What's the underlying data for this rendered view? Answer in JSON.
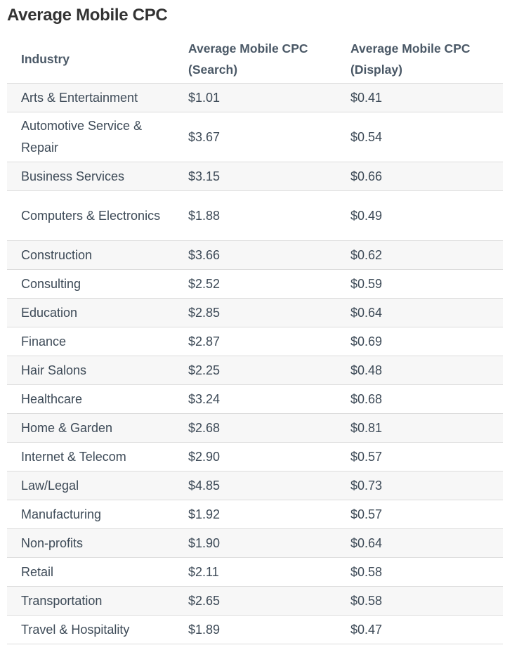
{
  "title": "Average Mobile CPC",
  "table": {
    "headers": [
      "Industry",
      "Average Mobile CPC (Search)",
      "Average Mobile CPC (Display)"
    ],
    "rows": [
      [
        "Arts & Entertainment",
        "$1.01",
        "$0.41"
      ],
      [
        "Automotive Service & Repair",
        "$3.67",
        "$0.54"
      ],
      [
        "Business Services",
        "$3.15",
        "$0.66"
      ],
      [
        "Computers & Electronics",
        "$1.88",
        "$0.49"
      ],
      [
        "Construction",
        "$3.66",
        "$0.62"
      ],
      [
        "Consulting",
        "$2.52",
        "$0.59"
      ],
      [
        "Education",
        "$2.85",
        "$0.64"
      ],
      [
        "Finance",
        "$2.87",
        "$0.69"
      ],
      [
        "Hair Salons",
        "$2.25",
        "$0.48"
      ],
      [
        "Healthcare",
        "$3.24",
        "$0.68"
      ],
      [
        "Home & Garden",
        "$2.68",
        "$0.81"
      ],
      [
        "Internet & Telecom",
        "$2.90",
        "$0.57"
      ],
      [
        "Law/Legal",
        "$4.85",
        "$0.73"
      ],
      [
        "Manufacturing",
        "$1.92",
        "$0.57"
      ],
      [
        "Non-profits",
        "$1.90",
        "$0.64"
      ],
      [
        "Retail",
        "$2.11",
        "$0.58"
      ],
      [
        "Transportation",
        "$2.65",
        "$0.58"
      ],
      [
        "Travel & Hospitality",
        "$1.89",
        "$0.47"
      ]
    ]
  }
}
